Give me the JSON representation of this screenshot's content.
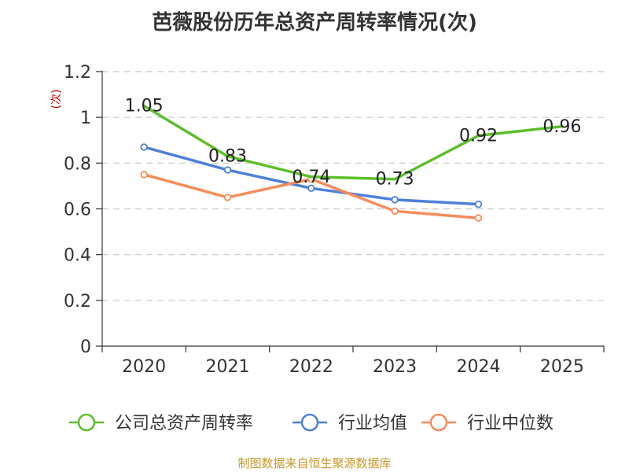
{
  "chart_data": {
    "type": "line",
    "title": "芭薇股份历年总资产周转率情况(次)",
    "ylabel": "(次)",
    "xlabel": "",
    "categories": [
      "2020",
      "2021",
      "2022",
      "2023",
      "2024",
      "2025"
    ],
    "ylim": [
      0,
      1.2
    ],
    "yticks": [
      0,
      0.2,
      0.4,
      0.6,
      0.8,
      1,
      1.2
    ],
    "ytick_labels": [
      "0",
      "0.2",
      "0.4",
      "0.6",
      "0.8",
      "1",
      "1.2"
    ],
    "grid": true,
    "legend_position": "bottom",
    "series": [
      {
        "name": "公司总资产周转率",
        "color": "#5cbf2a",
        "values": [
          1.05,
          0.83,
          0.74,
          0.73,
          0.92,
          0.96
        ],
        "labels": [
          "1.05",
          "0.83",
          "0.74",
          "0.73",
          "0.92",
          "0.96"
        ],
        "show_markers": false
      },
      {
        "name": "行业均值",
        "color": "#4f7fdc",
        "values": [
          0.87,
          0.77,
          0.69,
          0.64,
          0.62,
          null
        ],
        "show_markers": true
      },
      {
        "name": "行业中位数",
        "color": "#f58d5a",
        "values": [
          0.75,
          0.65,
          0.73,
          0.59,
          0.56,
          null
        ],
        "show_markers": true
      }
    ]
  },
  "footer": {
    "source": "制图数据来自恒生聚源数据库"
  }
}
